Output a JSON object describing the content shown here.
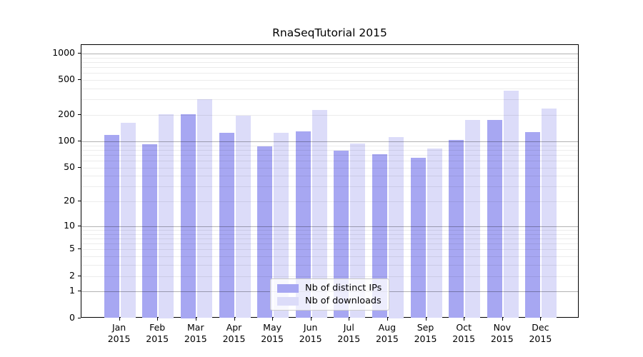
{
  "title": "RnaSeqTutorial 2015",
  "chart_data": {
    "type": "bar",
    "title": "RnaSeqTutorial 2015",
    "categories": [
      "Jan 2015",
      "Feb 2015",
      "Mar 2015",
      "Apr 2015",
      "May 2015",
      "Jun 2015",
      "Jul 2015",
      "Aug 2015",
      "Sep 2015",
      "Oct 2015",
      "Nov 2015",
      "Dec 2015"
    ],
    "series": [
      {
        "name": "Nb of distinct IPs",
        "color": "#a7a7f2",
        "values": [
          119,
          92,
          204,
          125,
          88,
          130,
          78,
          71,
          65,
          103,
          177,
          128
        ]
      },
      {
        "name": "Nb of downloads",
        "color": "#dcdcf9",
        "values": [
          162,
          204,
          301,
          197,
          125,
          228,
          94,
          112,
          83,
          177,
          380,
          238
        ]
      }
    ],
    "y_axis": {
      "scale": "log1p",
      "tick_values": [
        0,
        1,
        2,
        5,
        10,
        20,
        50,
        100,
        200,
        500,
        1000
      ],
      "range": [
        0,
        1000
      ],
      "major_gridline_values": [
        1,
        10,
        100,
        1000
      ]
    },
    "x_axis": {
      "label_lines": 2
    },
    "legend": {
      "position": "lower center"
    },
    "grid": "horizontal",
    "colors": {
      "bar_dark": "#a7a7f2",
      "bar_light": "#dcdcf9",
      "major_grid": "#b3b3b3",
      "minor_grid": "#ececec",
      "axis": "#000000"
    }
  }
}
